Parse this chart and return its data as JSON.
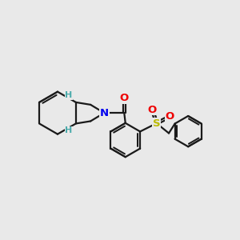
{
  "bg_color": "#e9e9e9",
  "bond_color": "#1a1a1a",
  "N_color": "#0000ee",
  "O_color": "#ee0000",
  "S_color": "#bbbb00",
  "H_color": "#4aabab",
  "bond_width": 1.6,
  "font_size_atom": 9.5,
  "font_size_H": 8.0,
  "xlim": [
    0,
    10
  ],
  "ylim": [
    0,
    10
  ]
}
